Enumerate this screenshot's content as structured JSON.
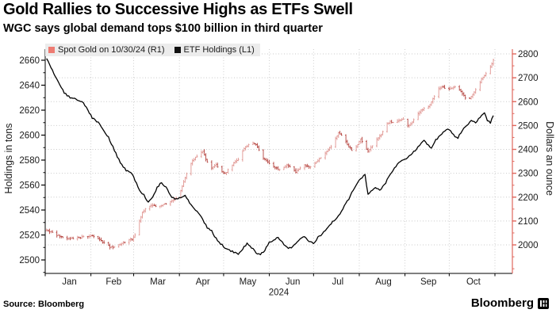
{
  "header": {
    "title": "Gold Rallies to Successive Highs as ETFs Swell",
    "subtitle": "WGC says global demand tops $100 billion in third quarter"
  },
  "footer": {
    "source": "Source: Bloomberg",
    "brand": "Bloomberg"
  },
  "legend": {
    "items": [
      {
        "label": "Spot Gold on 10/30/24 (R1)",
        "color": "#ee7b72"
      },
      {
        "label": "ETF Holdings (L1)",
        "color": "#111111"
      }
    ],
    "background": "#ececec"
  },
  "colors": {
    "gold_axis": "#e0685e",
    "gold_bar_up": "#e09490",
    "gold_bar_down": "#b4423d",
    "etf_line": "#000000",
    "grid": "#c9c9c9",
    "axis_black": "#000000",
    "tick_label": "#1a1a1a"
  },
  "chart_data": {
    "type": "line",
    "description": "Dual-axis daily chart, Jan-Oct 2024: spot gold price (OHLC bars, right axis) vs global gold ETF holdings (black line, left axis)",
    "x_axis": {
      "months": [
        "Jan",
        "Feb",
        "Mar",
        "Apr",
        "May",
        "Jun",
        "Jul",
        "Aug",
        "Sep",
        "Oct"
      ],
      "month_start_days": [
        0,
        31,
        60,
        91,
        121,
        152,
        182,
        213,
        244,
        274,
        305
      ],
      "year_label": "2024",
      "total_days": 305
    },
    "left_axis": {
      "title": "Holdings in tons",
      "ticks": [
        2500,
        2520,
        2540,
        2560,
        2580,
        2600,
        2620,
        2640,
        2660
      ],
      "minor_step": 10,
      "range_shown": [
        2488,
        2669
      ]
    },
    "right_axis": {
      "title": "Dollars an ounce",
      "ticks": [
        2000,
        2100,
        2200,
        2300,
        2400,
        2500,
        2600,
        2700,
        2800
      ],
      "minor_step": 50,
      "range_shown": [
        1880,
        2820
      ]
    },
    "grid": {
      "horizontal_on": "right_axis_ticks",
      "vertical_on": "month_starts",
      "style": "dotted"
    },
    "legend_position": "top-left-inside",
    "series": [
      {
        "name": "Spot Gold on 10/30/24 (R1)",
        "axis": "right",
        "style": "ohlc_bars",
        "unit": "USD/oz",
        "anchors": [
          [
            0,
            2064
          ],
          [
            4,
            2050
          ],
          [
            8,
            2038
          ],
          [
            12,
            2028
          ],
          [
            16,
            2025
          ],
          [
            20,
            2030
          ],
          [
            24,
            2032
          ],
          [
            28,
            2036
          ],
          [
            31,
            2040
          ],
          [
            35,
            2026
          ],
          [
            39,
            2008
          ],
          [
            43,
            1992
          ],
          [
            46,
            1990
          ],
          [
            50,
            2004
          ],
          [
            54,
            2014
          ],
          [
            58,
            2025
          ],
          [
            60,
            2040
          ],
          [
            62,
            2082
          ],
          [
            65,
            2135
          ],
          [
            68,
            2160
          ],
          [
            72,
            2165
          ],
          [
            76,
            2158
          ],
          [
            80,
            2172
          ],
          [
            84,
            2180
          ],
          [
            88,
            2195
          ],
          [
            91,
            2230
          ],
          [
            94,
            2280
          ],
          [
            97,
            2330
          ],
          [
            100,
            2360
          ],
          [
            103,
            2380
          ],
          [
            106,
            2392
          ],
          [
            109,
            2345
          ],
          [
            112,
            2320
          ],
          [
            115,
            2335
          ],
          [
            118,
            2310
          ],
          [
            121,
            2298
          ],
          [
            124,
            2320
          ],
          [
            127,
            2345
          ],
          [
            130,
            2360
          ],
          [
            133,
            2395
          ],
          [
            136,
            2415
          ],
          [
            139,
            2427
          ],
          [
            142,
            2418
          ],
          [
            145,
            2385
          ],
          [
            148,
            2355
          ],
          [
            151,
            2340
          ],
          [
            154,
            2330
          ],
          [
            157,
            2315
          ],
          [
            160,
            2322
          ],
          [
            163,
            2335
          ],
          [
            166,
            2325
          ],
          [
            169,
            2305
          ],
          [
            172,
            2320
          ],
          [
            175,
            2335
          ],
          [
            178,
            2325
          ],
          [
            181,
            2332
          ],
          [
            184,
            2355
          ],
          [
            187,
            2368
          ],
          [
            190,
            2392
          ],
          [
            193,
            2412
          ],
          [
            196,
            2448
          ],
          [
            198,
            2470
          ],
          [
            201,
            2455
          ],
          [
            204,
            2420
          ],
          [
            207,
            2396
          ],
          [
            210,
            2412
          ],
          [
            213,
            2442
          ],
          [
            216,
            2412
          ],
          [
            218,
            2392
          ],
          [
            221,
            2416
          ],
          [
            224,
            2440
          ],
          [
            227,
            2462
          ],
          [
            230,
            2502
          ],
          [
            233,
            2515
          ],
          [
            236,
            2512
          ],
          [
            239,
            2520
          ],
          [
            242,
            2526
          ],
          [
            245,
            2498
          ],
          [
            248,
            2512
          ],
          [
            251,
            2546
          ],
          [
            254,
            2562
          ],
          [
            257,
            2574
          ],
          [
            260,
            2586
          ],
          [
            263,
            2622
          ],
          [
            266,
            2656
          ],
          [
            269,
            2662
          ],
          [
            272,
            2650
          ],
          [
            274,
            2656
          ],
          [
            277,
            2662
          ],
          [
            280,
            2650
          ],
          [
            283,
            2624
          ],
          [
            286,
            2606
          ],
          [
            289,
            2632
          ],
          [
            292,
            2656
          ],
          [
            295,
            2692
          ],
          [
            298,
            2718
          ],
          [
            300,
            2732
          ],
          [
            302,
            2758
          ],
          [
            303,
            2776
          ]
        ]
      },
      {
        "name": "ETF Holdings (L1)",
        "axis": "left",
        "style": "line",
        "unit": "tons",
        "anchors": [
          [
            0,
            2661
          ],
          [
            4,
            2652
          ],
          [
            8,
            2642
          ],
          [
            12,
            2634
          ],
          [
            16,
            2630
          ],
          [
            20,
            2629
          ],
          [
            24,
            2627
          ],
          [
            28,
            2620
          ],
          [
            31,
            2614
          ],
          [
            35,
            2610
          ],
          [
            38,
            2605
          ],
          [
            42,
            2598
          ],
          [
            46,
            2588
          ],
          [
            50,
            2578
          ],
          [
            54,
            2572
          ],
          [
            58,
            2569
          ],
          [
            60,
            2564
          ],
          [
            63,
            2556
          ],
          [
            66,
            2552
          ],
          [
            69,
            2546
          ],
          [
            72,
            2550
          ],
          [
            75,
            2558
          ],
          [
            78,
            2562
          ],
          [
            81,
            2558
          ],
          [
            84,
            2552
          ],
          [
            87,
            2548
          ],
          [
            91,
            2550
          ],
          [
            94,
            2552
          ],
          [
            97,
            2546
          ],
          [
            100,
            2541
          ],
          [
            103,
            2538
          ],
          [
            106,
            2532
          ],
          [
            109,
            2526
          ],
          [
            112,
            2523
          ],
          [
            115,
            2517
          ],
          [
            118,
            2513
          ],
          [
            121,
            2510
          ],
          [
            124,
            2508
          ],
          [
            127,
            2506
          ],
          [
            130,
            2505
          ],
          [
            133,
            2509
          ],
          [
            136,
            2513
          ],
          [
            139,
            2510
          ],
          [
            142,
            2506
          ],
          [
            145,
            2504
          ],
          [
            148,
            2508
          ],
          [
            151,
            2514
          ],
          [
            154,
            2516
          ],
          [
            157,
            2518
          ],
          [
            160,
            2514
          ],
          [
            163,
            2510
          ],
          [
            166,
            2509
          ],
          [
            169,
            2513
          ],
          [
            172,
            2517
          ],
          [
            175,
            2519
          ],
          [
            178,
            2515
          ],
          [
            181,
            2513
          ],
          [
            184,
            2518
          ],
          [
            187,
            2521
          ],
          [
            190,
            2525
          ],
          [
            193,
            2529
          ],
          [
            196,
            2533
          ],
          [
            199,
            2537
          ],
          [
            202,
            2543
          ],
          [
            205,
            2549
          ],
          [
            208,
            2556
          ],
          [
            211,
            2562
          ],
          [
            214,
            2566
          ],
          [
            216,
            2569
          ],
          [
            218,
            2552
          ],
          [
            220,
            2555
          ],
          [
            223,
            2558
          ],
          [
            226,
            2556
          ],
          [
            229,
            2560
          ],
          [
            232,
            2566
          ],
          [
            235,
            2572
          ],
          [
            238,
            2577
          ],
          [
            241,
            2580
          ],
          [
            244,
            2581
          ],
          [
            247,
            2584
          ],
          [
            250,
            2588
          ],
          [
            253,
            2592
          ],
          [
            256,
            2596
          ],
          [
            258,
            2593
          ],
          [
            261,
            2590
          ],
          [
            264,
            2596
          ],
          [
            267,
            2600
          ],
          [
            270,
            2603
          ],
          [
            273,
            2605
          ],
          [
            276,
            2600
          ],
          [
            279,
            2598
          ],
          [
            282,
            2604
          ],
          [
            285,
            2608
          ],
          [
            288,
            2612
          ],
          [
            291,
            2610
          ],
          [
            294,
            2614
          ],
          [
            297,
            2618
          ],
          [
            299,
            2612
          ],
          [
            301,
            2610
          ],
          [
            303,
            2615
          ]
        ]
      }
    ]
  }
}
